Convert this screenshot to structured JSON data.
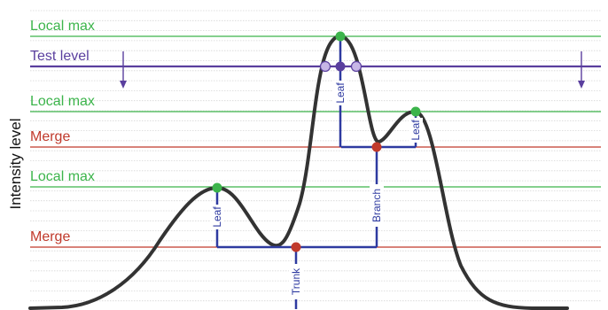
{
  "diagram": {
    "y_axis_label": "Intensity level",
    "levels": [
      {
        "label": "Local max",
        "kind": "local-max"
      },
      {
        "label": "Test level",
        "kind": "test"
      },
      {
        "label": "Local max",
        "kind": "local-max"
      },
      {
        "label": "Merge",
        "kind": "merge"
      },
      {
        "label": "Local max",
        "kind": "local-max"
      },
      {
        "label": "Merge",
        "kind": "merge"
      }
    ],
    "tree_labels": {
      "leaf_left": "Leaf",
      "leaf_center": "Leaf",
      "leaf_right": "Leaf",
      "branch": "Branch",
      "trunk": "Trunk"
    },
    "colors": {
      "local_max": "#3cb44b",
      "test": "#5a3f9e",
      "merge": "#c0392b",
      "tree": "#2e3aa0",
      "curve": "#333333",
      "grid": "#d6d6d6",
      "crossing_dot": "#c7b6e6"
    }
  }
}
